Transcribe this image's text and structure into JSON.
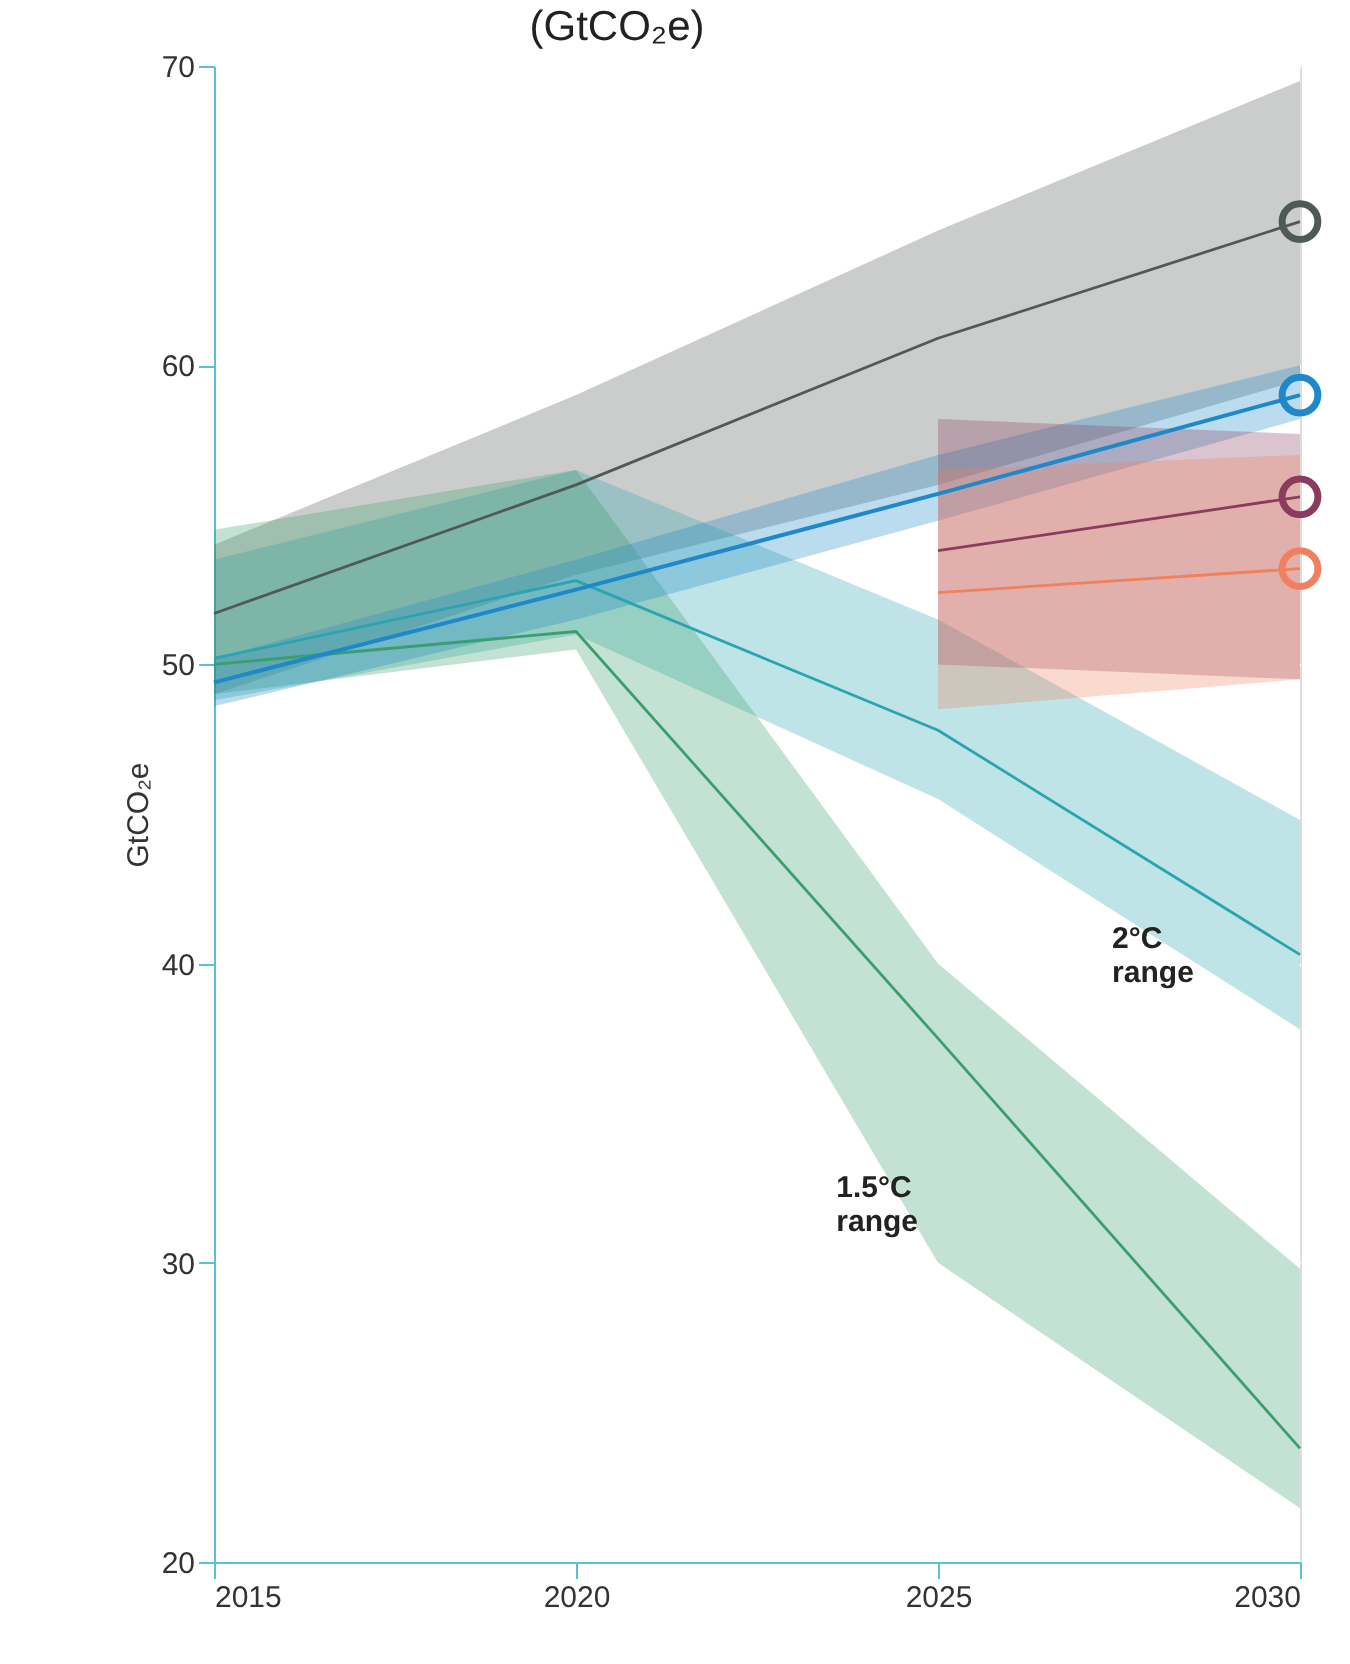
{
  "chart_data": {
    "type": "line",
    "title": "(GtCO₂e)",
    "ylabel": "GtCO₂e",
    "xlim": [
      2015,
      2030
    ],
    "xticks": [
      2015,
      2020,
      2025,
      2030
    ],
    "ylim": [
      20,
      70
    ],
    "yticks": [
      20,
      30,
      40,
      50,
      60,
      70
    ],
    "grid": "y",
    "line_style": "solid",
    "series": [
      {
        "color": "#4f5a55",
        "x": [
          2015,
          2020,
          2025,
          2030
        ],
        "values": [
          51.7,
          56.0,
          60.9,
          64.8
        ],
        "lower": [
          49.0,
          53.0,
          56.0,
          59.5
        ],
        "upper": [
          54.0,
          59.0,
          64.5,
          69.5
        ]
      },
      {
        "color": "#2aa5b0",
        "x": [
          2015,
          2020,
          2025,
          2030
        ],
        "values": [
          50.2,
          52.8,
          47.8,
          40.3
        ],
        "lower": [
          48.8,
          51.0,
          45.5,
          37.8
        ],
        "upper": [
          53.5,
          56.5,
          51.5,
          44.8
        ]
      },
      {
        "color": "#3a9e6e",
        "x": [
          2015,
          2020,
          2025,
          2030
        ],
        "values": [
          50.0,
          51.1,
          37.5,
          23.8
        ],
        "lower": [
          49.0,
          50.5,
          30.0,
          21.8
        ],
        "upper": [
          54.5,
          56.5,
          40.0,
          29.8
        ]
      },
      {
        "color": "#1e88c8",
        "x": [
          2015,
          2020,
          2025,
          2030
        ],
        "values": [
          49.4,
          52.5,
          55.7,
          59.0
        ],
        "lower": [
          48.6,
          51.5,
          54.8,
          58.2
        ],
        "upper": [
          50.2,
          53.5,
          57.0,
          60.0
        ]
      },
      {
        "color": "#8a3b5e",
        "x": [
          2025,
          2030
        ],
        "values": [
          53.8,
          55.6
        ],
        "lower": [
          50.0,
          49.5
        ],
        "upper": [
          58.2,
          57.7
        ]
      },
      {
        "color": "#f0805e",
        "x": [
          2025,
          2030
        ],
        "values": [
          52.4,
          53.2
        ],
        "lower": [
          48.5,
          49.5
        ],
        "upper": [
          56.5,
          57.0
        ]
      },
      {
        "type": "scatter",
        "color": "#4f5a55",
        "marker": "circle",
        "x": [
          2030
        ],
        "values": [
          64.8
        ]
      },
      {
        "type": "scatter",
        "color": "#1e88c8",
        "marker": "circle",
        "x": [
          2030
        ],
        "values": [
          59.0
        ]
      },
      {
        "type": "scatter",
        "color": "#8a3b5e",
        "marker": "circle",
        "x": [
          2030
        ],
        "values": [
          55.6
        ]
      },
      {
        "type": "scatter",
        "color": "#f0805e",
        "marker": "circle",
        "x": [
          2030
        ],
        "values": [
          53.2
        ]
      }
    ],
    "annotations": [
      "2°C\nrange",
      "1.5°C\nrange"
    ]
  }
}
